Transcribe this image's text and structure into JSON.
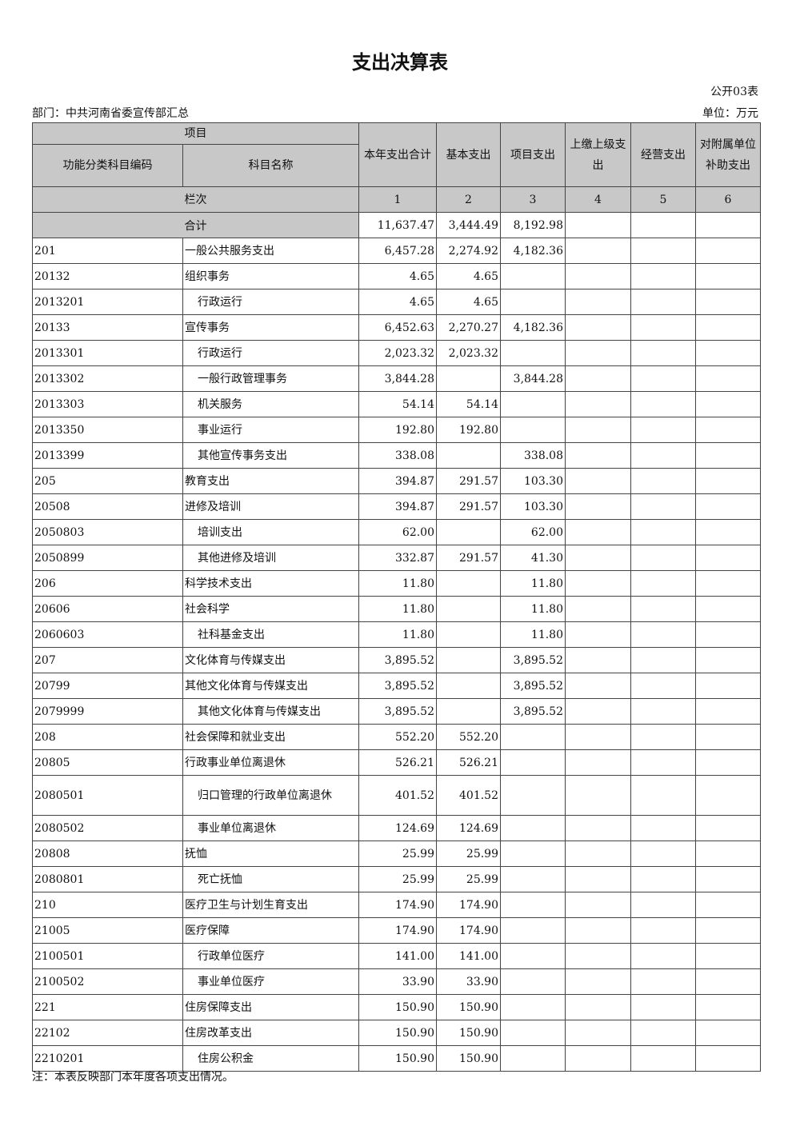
{
  "title": "支出决算表",
  "table_no": "公开03表",
  "department": "部门：中共河南省委宣传部汇总",
  "unit": "单位：万元",
  "headers": {
    "project": "项目",
    "code": "功能分类科目编码",
    "name": "科目名称",
    "total": "本年支出合计",
    "basic": "基本支出",
    "proj": "项目支出",
    "upper": "上缴上级支出",
    "business": "经营支出",
    "subsidy": "对附属单位补助支出"
  },
  "col_index": {
    "label": "栏次",
    "c1": "1",
    "c2": "2",
    "c3": "3",
    "c4": "4",
    "c5": "5",
    "c6": "6"
  },
  "total_row": {
    "label": "合计",
    "total": "11,637.47",
    "basic": "3,444.49",
    "proj": "8,192.98"
  },
  "rows": [
    [
      "201",
      "一般公共服务支出",
      0,
      "6,457.28",
      "2,274.92",
      "4,182.36"
    ],
    [
      "20132",
      "组织事务",
      0,
      "4.65",
      "4.65",
      ""
    ],
    [
      "2013201",
      "行政运行",
      1,
      "4.65",
      "4.65",
      ""
    ],
    [
      "20133",
      "宣传事务",
      0,
      "6,452.63",
      "2,270.27",
      "4,182.36"
    ],
    [
      "2013301",
      "行政运行",
      1,
      "2,023.32",
      "2,023.32",
      ""
    ],
    [
      "2013302",
      "一般行政管理事务",
      1,
      "3,844.28",
      "",
      "3,844.28"
    ],
    [
      "2013303",
      "机关服务",
      1,
      "54.14",
      "54.14",
      ""
    ],
    [
      "2013350",
      "事业运行",
      1,
      "192.80",
      "192.80",
      ""
    ],
    [
      "2013399",
      "其他宣传事务支出",
      1,
      "338.08",
      "",
      "338.08"
    ],
    [
      "205",
      "教育支出",
      0,
      "394.87",
      "291.57",
      "103.30"
    ],
    [
      "20508",
      "进修及培训",
      0,
      "394.87",
      "291.57",
      "103.30"
    ],
    [
      "2050803",
      "培训支出",
      1,
      "62.00",
      "",
      "62.00"
    ],
    [
      "2050899",
      "其他进修及培训",
      1,
      "332.87",
      "291.57",
      "41.30"
    ],
    [
      "206",
      "科学技术支出",
      0,
      "11.80",
      "",
      "11.80"
    ],
    [
      "20606",
      "社会科学",
      0,
      "11.80",
      "",
      "11.80"
    ],
    [
      "2060603",
      "社科基金支出",
      1,
      "11.80",
      "",
      "11.80"
    ],
    [
      "207",
      "文化体育与传媒支出",
      0,
      "3,895.52",
      "",
      "3,895.52"
    ],
    [
      "20799",
      "其他文化体育与传媒支出",
      0,
      "3,895.52",
      "",
      "3,895.52"
    ],
    [
      "2079999",
      "其他文化体育与传媒支出",
      1,
      "3,895.52",
      "",
      "3,895.52"
    ],
    [
      "208",
      "社会保障和就业支出",
      0,
      "552.20",
      "552.20",
      ""
    ],
    [
      "20805",
      "行政事业单位离退休",
      0,
      "526.21",
      "526.21",
      ""
    ],
    [
      "2080501",
      "归口管理的行政单位离退休",
      1,
      "401.52",
      "401.52",
      ""
    ],
    [
      "2080502",
      "事业单位离退休",
      1,
      "124.69",
      "124.69",
      ""
    ],
    [
      "20808",
      "抚恤",
      0,
      "25.99",
      "25.99",
      ""
    ],
    [
      "2080801",
      "死亡抚恤",
      1,
      "25.99",
      "25.99",
      ""
    ],
    [
      "210",
      "医疗卫生与计划生育支出",
      0,
      "174.90",
      "174.90",
      ""
    ],
    [
      "21005",
      "医疗保障",
      0,
      "174.90",
      "174.90",
      ""
    ],
    [
      "2100501",
      "行政单位医疗",
      1,
      "141.00",
      "141.00",
      ""
    ],
    [
      "2100502",
      "事业单位医疗",
      1,
      "33.90",
      "33.90",
      ""
    ],
    [
      "221",
      "住房保障支出",
      0,
      "150.90",
      "150.90",
      ""
    ],
    [
      "22102",
      "住房改革支出",
      0,
      "150.90",
      "150.90",
      ""
    ],
    [
      "2210201",
      "住房公积金",
      1,
      "150.90",
      "150.90",
      ""
    ]
  ],
  "note": "注：本表反映部门本年度各项支出情况。"
}
